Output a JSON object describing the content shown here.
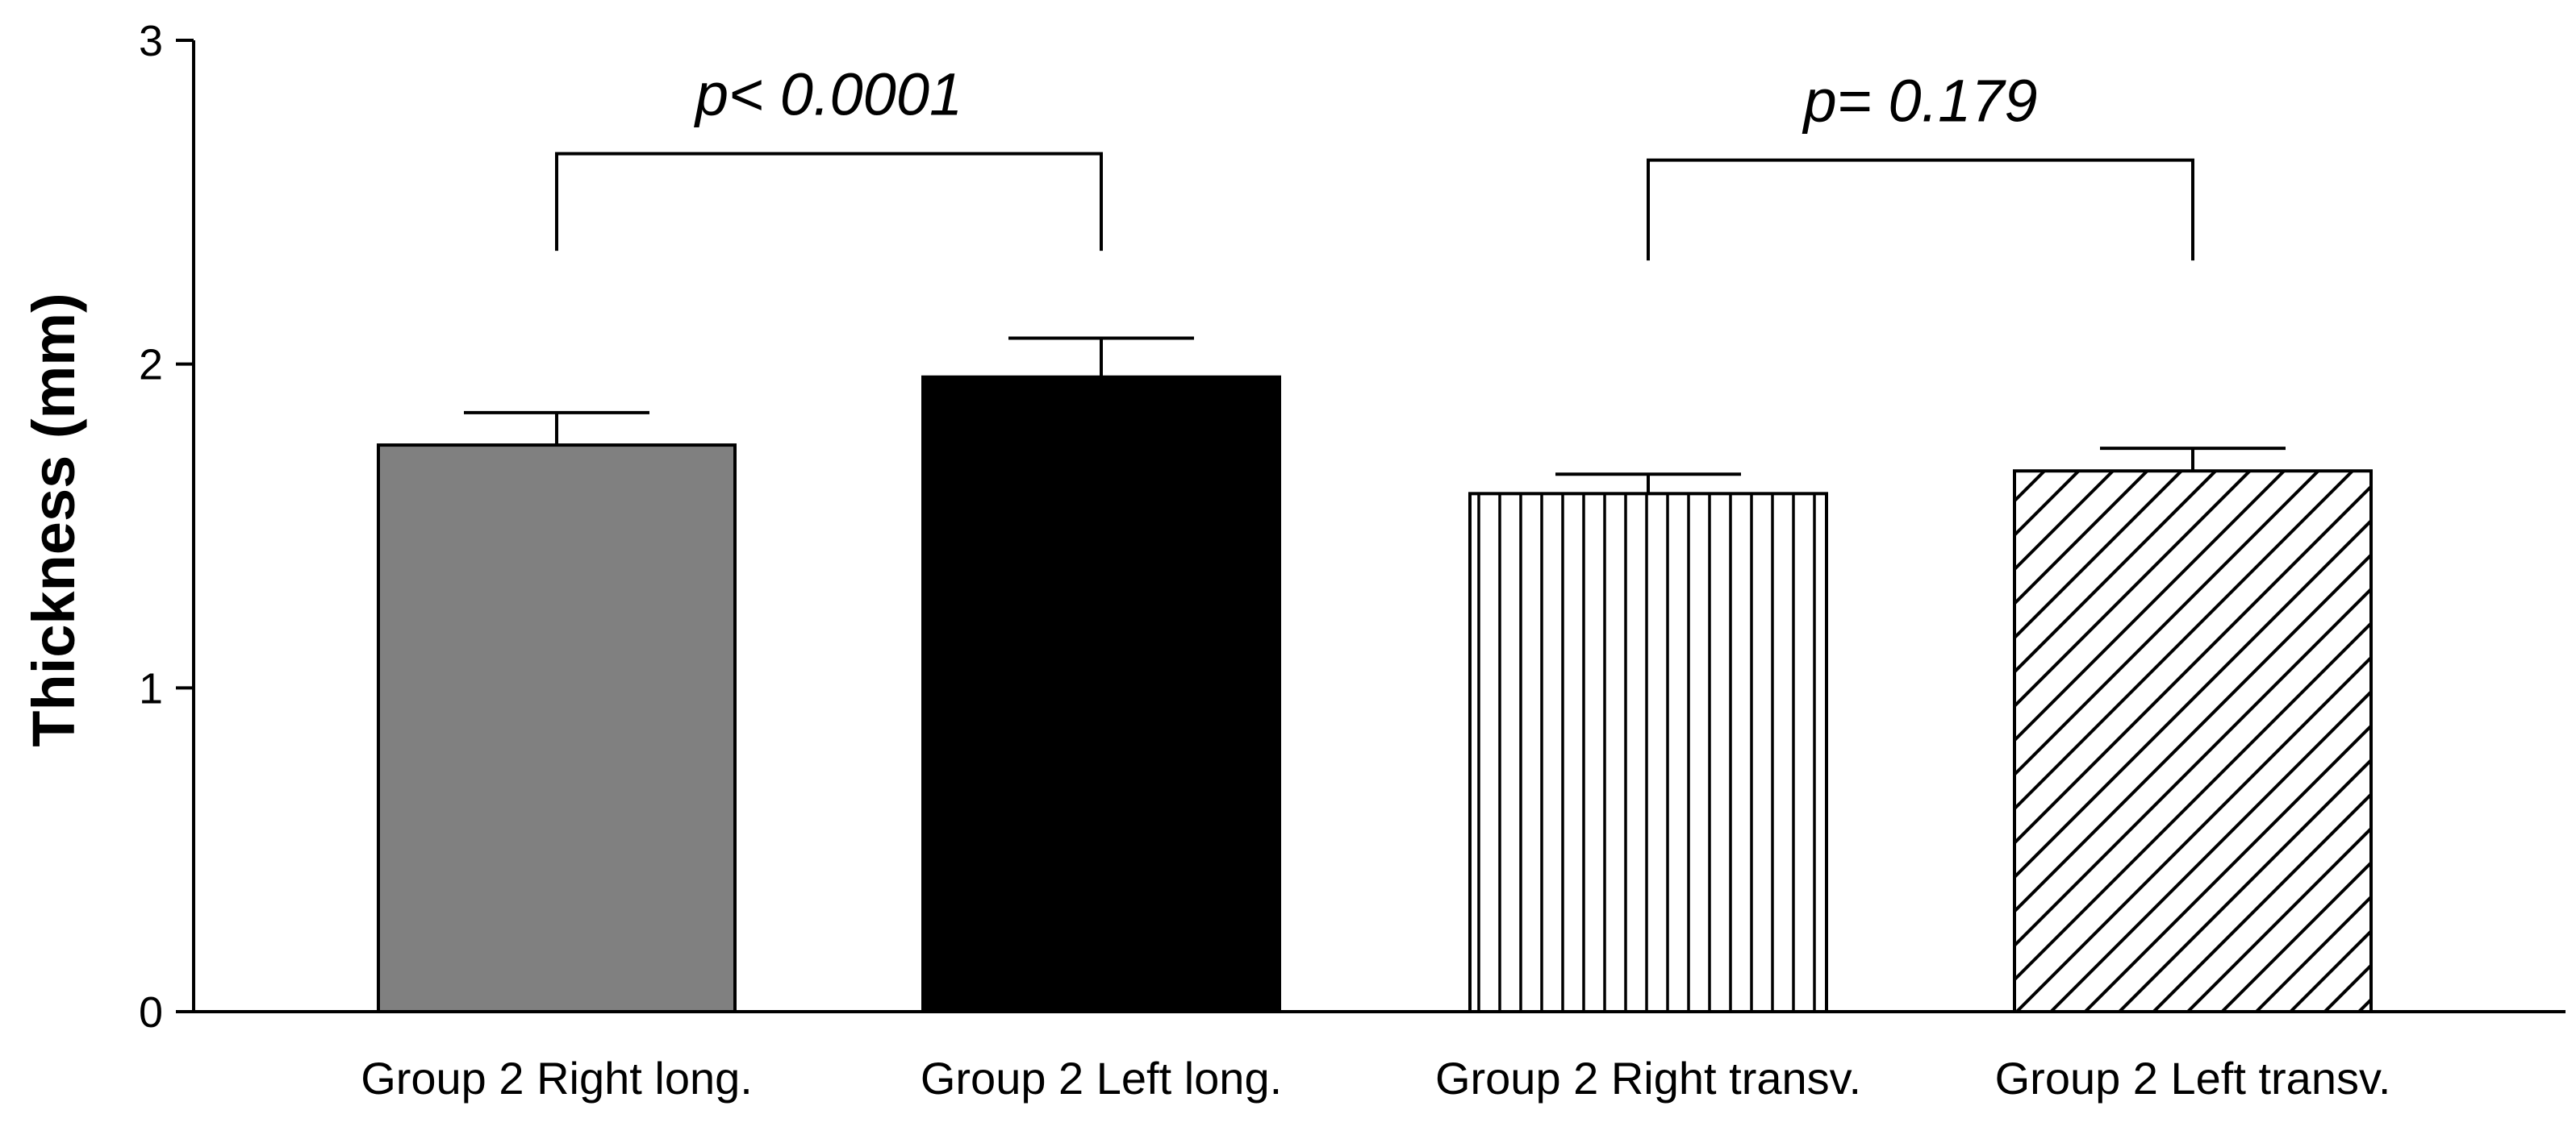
{
  "chart_data": {
    "type": "bar",
    "title": "",
    "xlabel": "",
    "ylabel": "Thickness (mm)",
    "ylim": [
      0,
      3
    ],
    "yticks": [
      "0",
      "1",
      "2",
      "3"
    ],
    "grid": false,
    "categories": [
      "Group 2 Right long.",
      "Group 2 Left long.",
      "Group 2 Right transv.",
      "Group 2 Left transv."
    ],
    "values": [
      1.75,
      1.96,
      1.6,
      1.67
    ],
    "errors": [
      0.1,
      0.12,
      0.06,
      0.07
    ],
    "fills": [
      "gray",
      "black",
      "vertical-lines",
      "diagonal-lines"
    ],
    "comparisons": [
      {
        "from": 0,
        "to": 1,
        "label": "p< 0.0001",
        "level": 2.65,
        "leg_to": 2.35
      },
      {
        "from": 2,
        "to": 3,
        "label": "p= 0.179",
        "level": 2.63,
        "leg_to": 2.32
      }
    ]
  },
  "colors": {
    "axis": "#000000",
    "bar_gray": "#808080",
    "bar_black": "#000000",
    "bar_white": "#ffffff"
  }
}
